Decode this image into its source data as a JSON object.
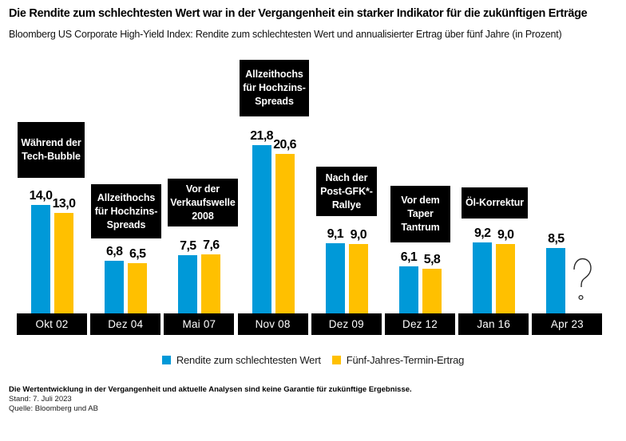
{
  "header": {
    "title": "Die Rendite zum schlechtesten Wert war in der Vergangenheit ein starker Indikator für die zukünftigen Erträge",
    "subtitle": "Bloomberg US Corporate High-Yield Index: Rendite zum schlechtesten Wert und annualisierter Ertrag über fünf Jahre (in Prozent)"
  },
  "chart_data": {
    "type": "bar",
    "categories": [
      "Okt 02",
      "Dez 04",
      "Mai 07",
      "Nov 08",
      "Dez 09",
      "Dez 12",
      "Jan 16",
      "Apr 23"
    ],
    "series": [
      {
        "name": "Rendite zum schlechtesten Wert",
        "color": "#0099D8",
        "values": [
          14.0,
          6.8,
          7.5,
          21.8,
          9.1,
          6.1,
          9.2,
          8.5
        ]
      },
      {
        "name": "Fünf-Jahres-Termin-Ertrag",
        "color": "#FFC000",
        "values": [
          13.0,
          6.5,
          7.6,
          20.6,
          9.0,
          5.8,
          9.0,
          null
        ]
      }
    ],
    "value_label_format": "decimal_comma_one_digit",
    "missing_value_marker": "question-mark",
    "annotations": [
      {
        "category": "Okt 02",
        "lines": [
          "Während der",
          "Tech-Bubble"
        ]
      },
      {
        "category": "Dez 04",
        "lines": [
          "Allzeithochs",
          "für Hochzins-",
          "Spreads"
        ]
      },
      {
        "category": "Mai 07",
        "lines": [
          "Vor der",
          "Verkaufswelle",
          "2008"
        ]
      },
      {
        "category": "Nov 08",
        "lines": [
          "Allzeithochs",
          "für Hochzins-",
          "Spreads"
        ]
      },
      {
        "category": "Dez 09",
        "lines": [
          "Nach der",
          "Post-GFK*-",
          "Rallye"
        ]
      },
      {
        "category": "Dez 12",
        "lines": [
          "Vor dem",
          "Taper",
          "Tantrum"
        ]
      },
      {
        "category": "Jan 16",
        "lines": [
          "Öl-Korrektur"
        ]
      }
    ],
    "title": "",
    "xlabel": "",
    "ylabel": "",
    "ylim": [
      0,
      22.5
    ],
    "grid": false,
    "legend_position": "bottom"
  },
  "legend": [
    {
      "label": "Rendite zum schlechtesten Wert",
      "color": "#0099D8"
    },
    {
      "label": "Fünf-Jahres-Termin-Ertrag",
      "color": "#FFC000"
    }
  ],
  "footer": {
    "disclaimer": "Die Wertentwicklung in der Vergangenheit und aktuelle Analysen sind keine Garantie für zukünftige Ergebnisse.",
    "as_of": "Stand: 7. Juli 2023",
    "source": "Quelle: Bloomberg und AB"
  }
}
